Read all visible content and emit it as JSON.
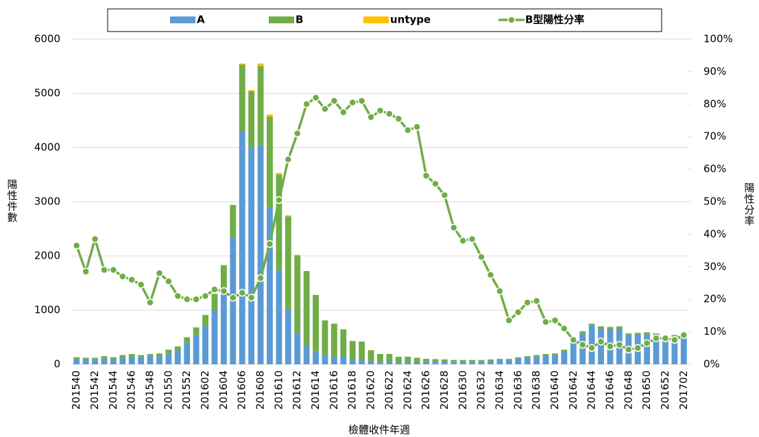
{
  "chart_data": {
    "type": "bar",
    "stacked": true,
    "x_label": "檢體收件年週",
    "y_label": "陽性件數",
    "y2_label": "陽性分率",
    "categories": [
      "201540",
      null,
      "201542",
      null,
      "201544",
      null,
      "201546",
      null,
      "201548",
      null,
      "201550",
      null,
      "201552",
      null,
      "201602",
      null,
      "201604",
      null,
      "201606",
      null,
      "201608",
      null,
      "201610",
      null,
      "201612",
      null,
      "201614",
      null,
      "201616",
      null,
      "201618",
      null,
      "201620",
      null,
      "201622",
      null,
      "201624",
      null,
      "201626",
      null,
      "201628",
      null,
      "201630",
      null,
      "201632",
      null,
      "201634",
      null,
      "201636",
      null,
      "201638",
      null,
      "201640",
      null,
      "201642",
      null,
      "201644",
      null,
      "201646",
      null,
      "201648",
      null,
      "201650",
      null,
      "201652",
      null,
      "201702"
    ],
    "series": [
      {
        "name": "A",
        "type": "bar",
        "color": "#5b9bd5",
        "values": [
          100,
          95,
          90,
          105,
          95,
          125,
          140,
          130,
          155,
          145,
          200,
          260,
          400,
          540,
          720,
          1000,
          1420,
          2340,
          4310,
          4010,
          4040,
          2880,
          1730,
          1010,
          580,
          340,
          230,
          175,
          140,
          145,
          85,
          80,
          62,
          42,
          44,
          34,
          39,
          32,
          42,
          42,
          43,
          46,
          50,
          49,
          54,
          65,
          78,
          87,
          109,
          121,
          137,
          165,
          173,
          240,
          388,
          573,
          712,
          651,
          652,
          658,
          544,
          551,
          552,
          524,
          478,
          500,
          510
        ]
      },
      {
        "name": "B",
        "type": "bar",
        "color": "#70ad47",
        "values": [
          30,
          25,
          30,
          45,
          35,
          45,
          50,
          40,
          35,
          55,
          70,
          70,
          100,
          140,
          190,
          300,
          410,
          600,
          1220,
          1030,
          1460,
          1690,
          1770,
          1720,
          1430,
          1380,
          1050,
          635,
          610,
          500,
          345,
          340,
          198,
          148,
          146,
          106,
          101,
          88,
          58,
          53,
          47,
          34,
          30,
          31,
          26,
          25,
          22,
          13,
          21,
          29,
          33,
          25,
          27,
          30,
          32,
          37,
          38,
          49,
          38,
          42,
          26,
          29,
          38,
          46,
          42,
          40,
          50
        ]
      },
      {
        "name": "untype",
        "type": "bar",
        "color": "#ffc000",
        "values": [
          0,
          0,
          0,
          0,
          0,
          0,
          0,
          0,
          0,
          0,
          0,
          0,
          0,
          0,
          0,
          0,
          0,
          0,
          20,
          20,
          50,
          40,
          30,
          20,
          10,
          0,
          0,
          0,
          0,
          0,
          0,
          0,
          0,
          0,
          0,
          0,
          0,
          0,
          0,
          0,
          0,
          0,
          0,
          0,
          0,
          0,
          0,
          0,
          0,
          0,
          0,
          0,
          0,
          0,
          0,
          0,
          0,
          0,
          0,
          0,
          0,
          0,
          0,
          0,
          0,
          0,
          0
        ]
      },
      {
        "name": "B型陽性分率",
        "type": "line",
        "axis": "y2",
        "color": "#70ad47",
        "values": [
          36.5,
          28.5,
          38.5,
          29,
          29,
          27,
          26,
          24.5,
          19,
          28,
          25.5,
          21,
          20,
          20,
          21,
          23,
          22.5,
          20.5,
          22,
          20.5,
          26.5,
          37,
          50.5,
          63,
          71,
          80,
          82,
          78.5,
          81,
          77.5,
          80.5,
          81,
          76,
          78,
          77,
          75.5,
          72,
          73,
          58,
          55.5,
          52,
          42,
          38,
          38.5,
          33,
          27.5,
          22.5,
          13.5,
          16,
          19,
          19.5,
          13,
          13.5,
          11,
          7.5,
          6,
          5,
          7,
          5.5,
          6,
          4.5,
          5,
          6.5,
          8,
          8,
          7.5,
          9
        ]
      }
    ],
    "ylim": [
      0,
      6000
    ],
    "yticks": [
      0,
      1000,
      2000,
      3000,
      4000,
      5000,
      6000
    ],
    "y2lim": [
      0,
      100
    ],
    "y2ticks": [
      {
        "value": 0,
        "label": "0%"
      },
      {
        "value": 10,
        "label": "10%"
      },
      {
        "value": 20,
        "label": "20%"
      },
      {
        "value": 30,
        "label": "30%"
      },
      {
        "value": 40,
        "label": "40%"
      },
      {
        "value": 50,
        "label": "50%"
      },
      {
        "value": 60,
        "label": "60%"
      },
      {
        "value": 70,
        "label": "70%"
      },
      {
        "value": 80,
        "label": "80%"
      },
      {
        "value": 90,
        "label": "90%"
      },
      {
        "value": 100,
        "label": "100%"
      }
    ],
    "grid": true,
    "legend": "top"
  }
}
